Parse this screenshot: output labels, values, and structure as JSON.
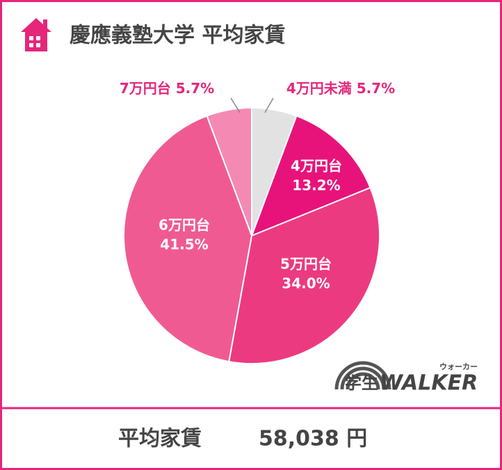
{
  "chart_data": {
    "type": "pie",
    "title": "慶應義塾大学 平均家賃",
    "categories": [
      "4万円未満",
      "4万円台",
      "5万円台",
      "6万円台",
      "7万円台"
    ],
    "values": [
      5.7,
      13.2,
      34.0,
      41.5,
      5.7
    ],
    "value_labels": [
      "5.7%",
      "13.2%",
      "34.0%",
      "41.5%",
      "5.7%"
    ],
    "colors": [
      "#e2e2e2",
      "#e8137a",
      "#ec3a80",
      "#f05a92",
      "#f48ab4"
    ]
  },
  "footer": {
    "label": "平均家賃",
    "value": "58,038 円"
  },
  "logo": {
    "text": "学生",
    "brand": "WALKER",
    "reading": "ウォーカー"
  }
}
